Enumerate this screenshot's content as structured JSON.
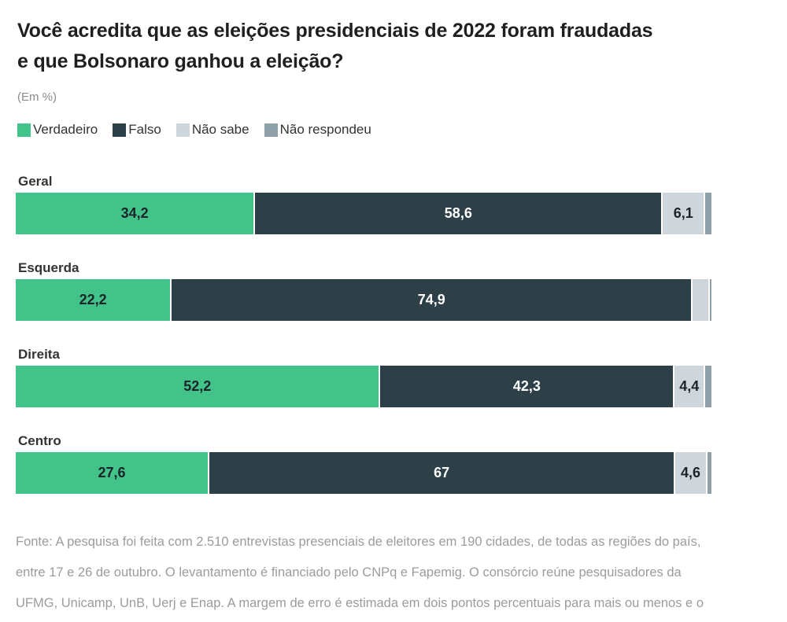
{
  "header": {
    "title": "Você acredita que as eleições presidenciais de 2022 foram fraudadas e que Bolsonaro ganhou a eleição?",
    "unit_note": "(Em %)"
  },
  "chart_data": {
    "type": "bar",
    "orientation": "horizontal",
    "stacked": true,
    "title": "Você acredita que as eleições presidenciais de 2022 foram fraudadas e que Bolsonaro ganhou a eleição?",
    "unit": "%",
    "xlim": [
      0,
      100
    ],
    "legend_position": "top",
    "categories": [
      "Geral",
      "Esquerda",
      "Direita",
      "Centro"
    ],
    "series": [
      {
        "name": "Verdadeiro",
        "color": "#41c38a",
        "label_color": "#1d2429",
        "values": [
          34.2,
          22.2,
          52.2,
          27.6
        ],
        "labels": [
          "34,2",
          "22,2",
          "52,2",
          "27,6"
        ]
      },
      {
        "name": "Falso",
        "color": "#2d4048",
        "label_color": "#ffffff",
        "values": [
          58.6,
          74.9,
          42.3,
          67
        ],
        "labels": [
          "58,6",
          "74,9",
          "42,3",
          "67"
        ]
      },
      {
        "name": "Não sabe",
        "color": "#ced6db",
        "label_color": "#1d2429",
        "values": [
          6.1,
          2.4,
          4.4,
          4.6
        ],
        "labels": [
          "6,1",
          "",
          "4,4",
          "4,6"
        ]
      },
      {
        "name": "Não respondeu",
        "color": "#8fa0a9",
        "label_color": "#1d2429",
        "values": [
          1.1,
          0.5,
          1.1,
          0.8
        ],
        "labels": [
          "",
          "",
          "",
          ""
        ]
      }
    ]
  },
  "footer": {
    "lines": [
      "Fonte: A pesquisa foi feita com 2.510 entrevistas presenciais de eleitores em 190 cidades, de todas as regiões do país,",
      "entre 17 e 26 de outubro. O levantamento é financiado pelo CNPq e Fapemig. O consórcio reúne pesquisadores da",
      "UFMG, Unicamp, UnB, Uerj e Enap. A margem de erro é estimada em dois pontos percentuais para mais ou menos e o"
    ]
  }
}
